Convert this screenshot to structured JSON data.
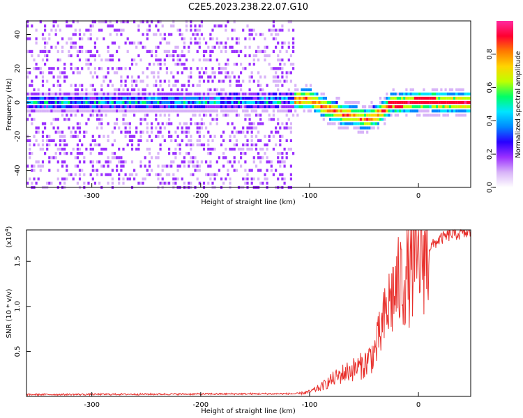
{
  "title": "C2E5.2023.238.22.07.G10",
  "chart_data": [
    {
      "type": "heatmap",
      "xlabel": "Height of straight line (km)",
      "ylabel": "Frequency (Hz)",
      "xlim": [
        -360,
        48
      ],
      "ylim": [
        -50,
        48
      ],
      "xticks": [
        -300,
        -200,
        -100,
        0
      ],
      "yticks": [
        -40,
        -20,
        0,
        20,
        40
      ],
      "colorbar": {
        "label": "Normalized spectral amplitude",
        "range": [
          0.0,
          1.0
        ],
        "ticks": [
          "0.0",
          "0.2",
          "0.4",
          "0.6",
          "0.8"
        ],
        "colormap": [
          "#ffffff",
          "#d8b4f8",
          "#9b30ff",
          "#2800ff",
          "#0088ff",
          "#00e5ff",
          "#00ff66",
          "#bfff00",
          "#ffd400",
          "#ff7a00",
          "#ff0030",
          "#ff2aa0"
        ]
      },
      "ridge": {
        "x": [
          -360,
          -120,
          -100,
          -90,
          -80,
          -70,
          -60,
          -50,
          -40,
          -30,
          -25,
          -20,
          -10,
          0,
          10,
          20,
          48
        ],
        "y": [
          0,
          1,
          2,
          -2,
          -5,
          -7,
          -8,
          -10,
          -8,
          -3,
          0,
          -1,
          0,
          1,
          1,
          0,
          0
        ]
      }
    },
    {
      "type": "line",
      "xlabel": "Height of straight line (km)",
      "ylabel": "SNR (10 * v/v)",
      "scale_label": "(x10",
      "scale_exp": "4",
      "scale_close": ")",
      "xlim": [
        -360,
        48
      ],
      "ylim": [
        0,
        1.85
      ],
      "xticks": [
        -300,
        -200,
        -100,
        0
      ],
      "yticks": [
        0.5,
        1.0,
        1.5
      ],
      "ytick_labels": [
        "0.5",
        "1.0",
        "1.5"
      ],
      "color": "#e8302c",
      "envelope": {
        "x": [
          -360,
          -110,
          -100,
          -90,
          -80,
          -70,
          -60,
          -50,
          -40,
          -35,
          -30,
          -25,
          -20,
          -15,
          -10,
          -5,
          0,
          10,
          20,
          30,
          48
        ],
        "y": [
          0.02,
          0.03,
          0.05,
          0.1,
          0.18,
          0.25,
          0.3,
          0.35,
          0.5,
          0.7,
          0.9,
          1.1,
          1.2,
          1.3,
          1.35,
          1.45,
          1.55,
          1.65,
          1.75,
          1.8,
          1.82
        ]
      }
    }
  ]
}
